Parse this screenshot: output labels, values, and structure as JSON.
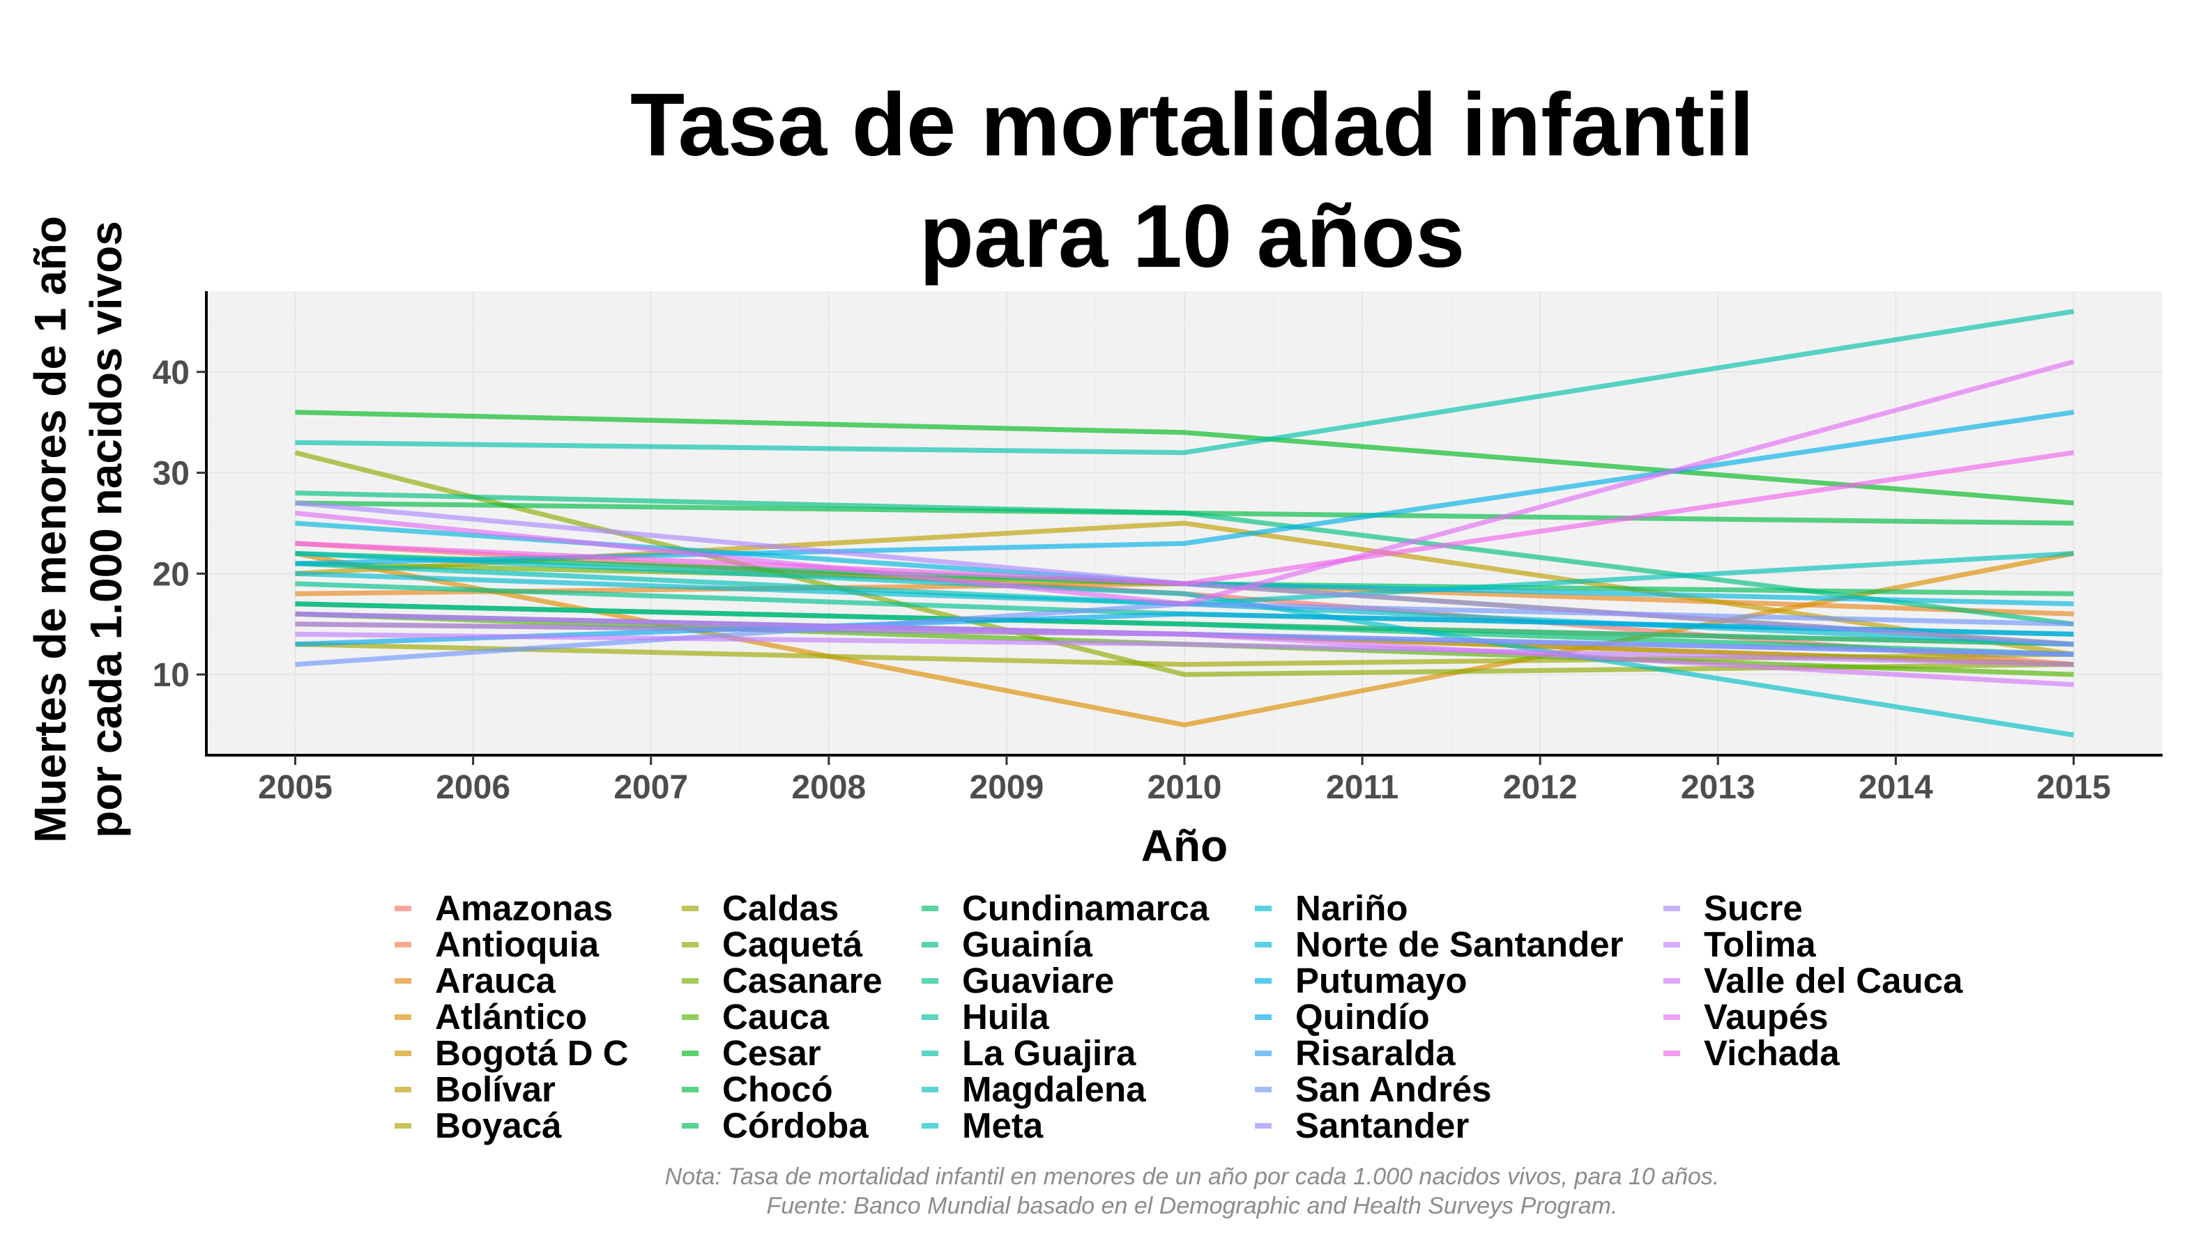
{
  "title_lines": [
    "Tasa de mortalidad infantil",
    "para 10 años"
  ],
  "caption_lines": [
    "Nota: Tasa de mortalidad infantil en menores de un año por cada 1.000 nacidos vivos, para 10 años.",
    "Fuente: Banco Mundial basado en el Demographic and Health Surveys Program."
  ],
  "chart_data": {
    "type": "line",
    "title": "Tasa de mortalidad infantil para 10 años",
    "xlabel": "Año",
    "ylabel_lines": [
      "Muertes de menores de 1 año",
      "por cada 1.000 nacidos vivos"
    ],
    "x_ticks": [
      2005,
      2006,
      2007,
      2008,
      2009,
      2010,
      2011,
      2012,
      2013,
      2014,
      2015
    ],
    "xlim": [
      2004.5,
      2015.5
    ],
    "y_ticks": [
      10,
      20,
      30,
      40
    ],
    "ylim": [
      2,
      48
    ],
    "grid": true,
    "legend_position": "bottom",
    "line_opacity": 0.65,
    "panel_background": "#f2f2f2",
    "x": [
      2005,
      2010,
      2015
    ],
    "series": [
      {
        "name": "Amazonas",
        "color": "#F8766D",
        "values": [
          23,
          18,
          11
        ]
      },
      {
        "name": "Antioquia",
        "color": "#F17E4F",
        "values": [
          15,
          14,
          11
        ]
      },
      {
        "name": "Arauca",
        "color": "#E7861B",
        "values": [
          18,
          19,
          16
        ]
      },
      {
        "name": "Atlántico",
        "color": "#DB8E00",
        "values": [
          22,
          5,
          22
        ]
      },
      {
        "name": "Bogotá D C",
        "color": "#CE9700",
        "values": [
          17,
          15,
          13
        ]
      },
      {
        "name": "Bolívar",
        "color": "#BF9D00",
        "values": [
          20,
          25,
          12
        ]
      },
      {
        "name": "Boyacá",
        "color": "#AFA200",
        "values": [
          16,
          14,
          11
        ]
      },
      {
        "name": "Caldas",
        "color": "#9DA700",
        "values": [
          13,
          11,
          12
        ]
      },
      {
        "name": "Caquetá",
        "color": "#8AAB00",
        "values": [
          32,
          10,
          11
        ]
      },
      {
        "name": "Casanare",
        "color": "#72B000",
        "values": [
          21,
          19,
          13
        ]
      },
      {
        "name": "Cauca",
        "color": "#53B400",
        "values": [
          16,
          13,
          10
        ]
      },
      {
        "name": "Cesar",
        "color": "#00B81F",
        "values": [
          36,
          34,
          27
        ]
      },
      {
        "name": "Chocó",
        "color": "#00BA42",
        "values": [
          27,
          26,
          25
        ]
      },
      {
        "name": "Córdoba",
        "color": "#00BC59",
        "values": [
          22,
          19,
          18
        ]
      },
      {
        "name": "Cundinamarca",
        "color": "#00BE6C",
        "values": [
          17,
          15,
          12
        ]
      },
      {
        "name": "Guainía",
        "color": "#00BF7D",
        "values": [
          28,
          26,
          15
        ]
      },
      {
        "name": "Guaviare",
        "color": "#00C08E",
        "values": [
          19,
          16,
          14
        ]
      },
      {
        "name": "Huila",
        "color": "#00C19C",
        "values": [
          17,
          15,
          13
        ]
      },
      {
        "name": "La Guajira",
        "color": "#00C0AB",
        "values": [
          33,
          32,
          46
        ]
      },
      {
        "name": "Magdalena",
        "color": "#00BFB8",
        "values": [
          21,
          17,
          22
        ]
      },
      {
        "name": "Meta",
        "color": "#00BDC4",
        "values": [
          22,
          18,
          4
        ]
      },
      {
        "name": "Nariño",
        "color": "#00BAD0",
        "values": [
          20,
          17,
          13
        ]
      },
      {
        "name": "Norte de Santander",
        "color": "#00B5DB",
        "values": [
          25,
          19,
          17
        ]
      },
      {
        "name": "Putumayo",
        "color": "#00AFE5",
        "values": [
          21,
          23,
          36
        ]
      },
      {
        "name": "Quindío",
        "color": "#00A8EE",
        "values": [
          13,
          16,
          14
        ]
      },
      {
        "name": "Risaralda",
        "color": "#33A0F5",
        "values": [
          16,
          14,
          12
        ]
      },
      {
        "name": "San Andrés",
        "color": "#7197FA",
        "values": [
          11,
          17,
          15
        ]
      },
      {
        "name": "Santander",
        "color": "#938EFE",
        "values": [
          15,
          14,
          12
        ]
      },
      {
        "name": "Sucre",
        "color": "#AC88FF",
        "values": [
          27,
          19,
          13
        ]
      },
      {
        "name": "Tolima",
        "color": "#C17FFF",
        "values": [
          14,
          13,
          11
        ]
      },
      {
        "name": "Valle del Cauca",
        "color": "#D277FA",
        "values": [
          16,
          14,
          9
        ]
      },
      {
        "name": "Vaupés",
        "color": "#E26FF4",
        "values": [
          26,
          17,
          41
        ]
      },
      {
        "name": "Vichada",
        "color": "#F066EB",
        "values": [
          23,
          19,
          32
        ]
      }
    ]
  }
}
